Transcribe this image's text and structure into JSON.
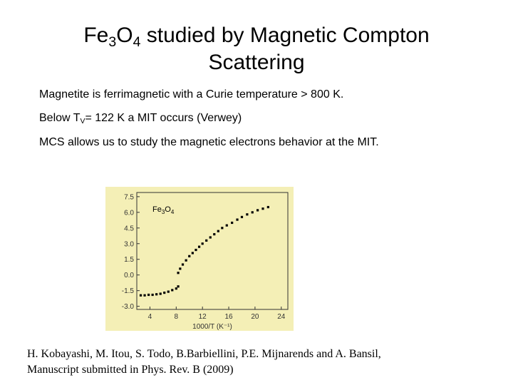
{
  "title": {
    "parts": [
      "Fe",
      "3",
      "O",
      "4",
      " studied by Magnetic Compton",
      "Scattering"
    ]
  },
  "bullets": [
    {
      "parts": [
        "Magnetite is ferrimagnetic with a Curie temperature > 800 K."
      ]
    },
    {
      "parts": [
        "Below T",
        "V",
        "= 122 K a MIT occurs (Verwey)"
      ]
    },
    {
      "parts": [
        "MCS allows us to study the magnetic electrons behavior at the MIT."
      ]
    }
  ],
  "citation": [
    "H. Kobayashi, M. Itou, S. Todo, B.Barbiellini, P.E. Mijnarends and A. Bansil,",
    "Manuscript submitted in Phys. Rev. B (2009)"
  ],
  "chart_data": {
    "type": "scatter",
    "annotation": [
      "Fe",
      "3",
      "O",
      "4"
    ],
    "x_label": "1000/T (K⁻¹)",
    "color": "#000000",
    "x": [
      2.6,
      3.2,
      3.8,
      4.4,
      5.0,
      5.6,
      6.2,
      6.8,
      7.4,
      8.0,
      8.3,
      8.3,
      8.6,
      9.0,
      9.5,
      10.0,
      10.5,
      11.0,
      11.5,
      12.0,
      12.6,
      13.2,
      13.8,
      14.4,
      15.0,
      15.7,
      16.5,
      17.3,
      18.0,
      18.8,
      19.6,
      20.4,
      21.2,
      22.0
    ],
    "values": [
      -1.95,
      -1.95,
      -1.9,
      -1.9,
      -1.85,
      -1.8,
      -1.7,
      -1.6,
      -1.45,
      -1.3,
      -1.1,
      0.2,
      0.6,
      1.0,
      1.4,
      1.8,
      2.1,
      2.4,
      2.7,
      3.0,
      3.3,
      3.6,
      3.9,
      4.2,
      4.5,
      4.75,
      5.0,
      5.3,
      5.55,
      5.8,
      6.0,
      6.2,
      6.35,
      6.5
    ],
    "xlim": [
      2,
      25
    ],
    "ylim": [
      -3.3,
      7.9
    ],
    "xticks": [
      4,
      8,
      12,
      16,
      20,
      24
    ],
    "yticks": [
      7.5,
      {
        "value": 6,
        "label": "6.0"
      },
      4.5,
      {
        "value": 3,
        "label": "3.0"
      },
      1.5,
      {
        "value": 0,
        "label": "0.0"
      },
      -1.5,
      {
        "value": -3,
        "label": "-3.0"
      }
    ]
  }
}
